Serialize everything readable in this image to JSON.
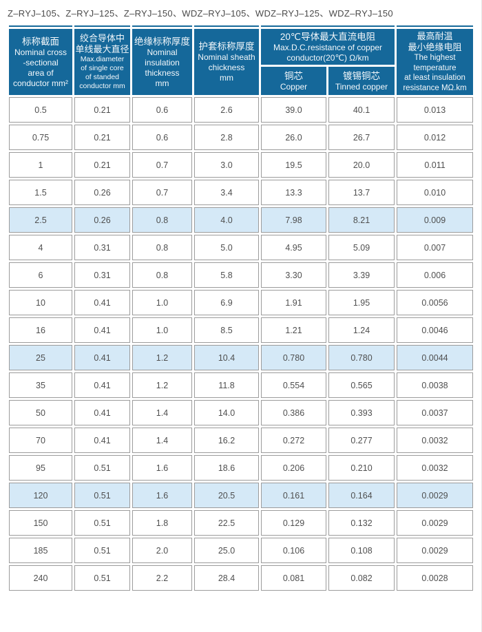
{
  "page_title": "Z–RYJ–105、Z–RYJ–125、Z–RYJ–150、WDZ–RYJ–105、WDZ–RYJ–125、WDZ–RYJ–150",
  "colors": {
    "header_bg": "#15689a",
    "header_text": "#f4f8fb",
    "highlight_bg": "#d5e9f7",
    "cell_border": "#9b9b9b",
    "body_text": "#4f4f4f"
  },
  "table": {
    "header": {
      "cross_section": {
        "zh": [
          "标称截面"
        ],
        "en": [
          "Nominal cross",
          "-sectional",
          "area of",
          "conductor mm²"
        ]
      },
      "max_diameter": {
        "zh": [
          "绞合导体中",
          "单线最大直径"
        ],
        "en": [
          "Max.diameter",
          "of single core",
          "of standed",
          "conductor mm"
        ]
      },
      "insulation": {
        "zh": [
          "绝缘标称厚度"
        ],
        "en": [
          "Nominal",
          "insulation",
          "thickness",
          "mm"
        ]
      },
      "sheath": {
        "zh": [
          "护套标称厚度"
        ],
        "en": [
          "Nominal sheath",
          "chickness",
          "mm"
        ]
      },
      "dc_resistance_group": {
        "zh": [
          "20℃导体最大直流电阻"
        ],
        "en": [
          "Max.D.C.resistance of copper",
          "conductor(20℃) Ω/km"
        ]
      },
      "copper": {
        "zh": [
          "铜芯"
        ],
        "en": [
          "Copper"
        ]
      },
      "tinned_copper": {
        "zh": [
          "镀锡铜芯"
        ],
        "en": [
          "Tinned copper"
        ]
      },
      "max_temp": {
        "zh": [
          "最高耐温",
          "最小绝缘电阻"
        ],
        "en": [
          "The highest",
          "temperature",
          "at least insulation",
          "resistance MΩ.km"
        ]
      }
    },
    "rows": [
      [
        "0.5",
        "0.21",
        "0.6",
        "2.6",
        "39.0",
        "40.1",
        "0.013"
      ],
      [
        "0.75",
        "0.21",
        "0.6",
        "2.8",
        "26.0",
        "26.7",
        "0.012"
      ],
      [
        "1",
        "0.21",
        "0.7",
        "3.0",
        "19.5",
        "20.0",
        "0.011"
      ],
      [
        "1.5",
        "0.26",
        "0.7",
        "3.4",
        "13.3",
        "13.7",
        "0.010"
      ],
      [
        "2.5",
        "0.26",
        "0.8",
        "4.0",
        "7.98",
        "8.21",
        "0.009"
      ],
      [
        "4",
        "0.31",
        "0.8",
        "5.0",
        "4.95",
        "5.09",
        "0.007"
      ],
      [
        "6",
        "0.31",
        "0.8",
        "5.8",
        "3.30",
        "3.39",
        "0.006"
      ],
      [
        "10",
        "0.41",
        "1.0",
        "6.9",
        "1.91",
        "1.95",
        "0.0056"
      ],
      [
        "16",
        "0.41",
        "1.0",
        "8.5",
        "1.21",
        "1.24",
        "0.0046"
      ],
      [
        "25",
        "0.41",
        "1.2",
        "10.4",
        "0.780",
        "0.780",
        "0.0044"
      ],
      [
        "35",
        "0.41",
        "1.2",
        "11.8",
        "0.554",
        "0.565",
        "0.0038"
      ],
      [
        "50",
        "0.41",
        "1.4",
        "14.0",
        "0.386",
        "0.393",
        "0.0037"
      ],
      [
        "70",
        "0.41",
        "1.4",
        "16.2",
        "0.272",
        "0.277",
        "0.0032"
      ],
      [
        "95",
        "0.51",
        "1.6",
        "18.6",
        "0.206",
        "0.210",
        "0.0032"
      ],
      [
        "120",
        "0.51",
        "1.6",
        "20.5",
        "0.161",
        "0.164",
        "0.0029"
      ],
      [
        "150",
        "0.51",
        "1.8",
        "22.5",
        "0.129",
        "0.132",
        "0.0029"
      ],
      [
        "185",
        "0.51",
        "2.0",
        "25.0",
        "0.106",
        "0.108",
        "0.0029"
      ],
      [
        "240",
        "0.51",
        "2.2",
        "28.4",
        "0.081",
        "0.082",
        "0.0028"
      ]
    ],
    "highlight_rows": [
      4,
      9,
      14
    ]
  }
}
